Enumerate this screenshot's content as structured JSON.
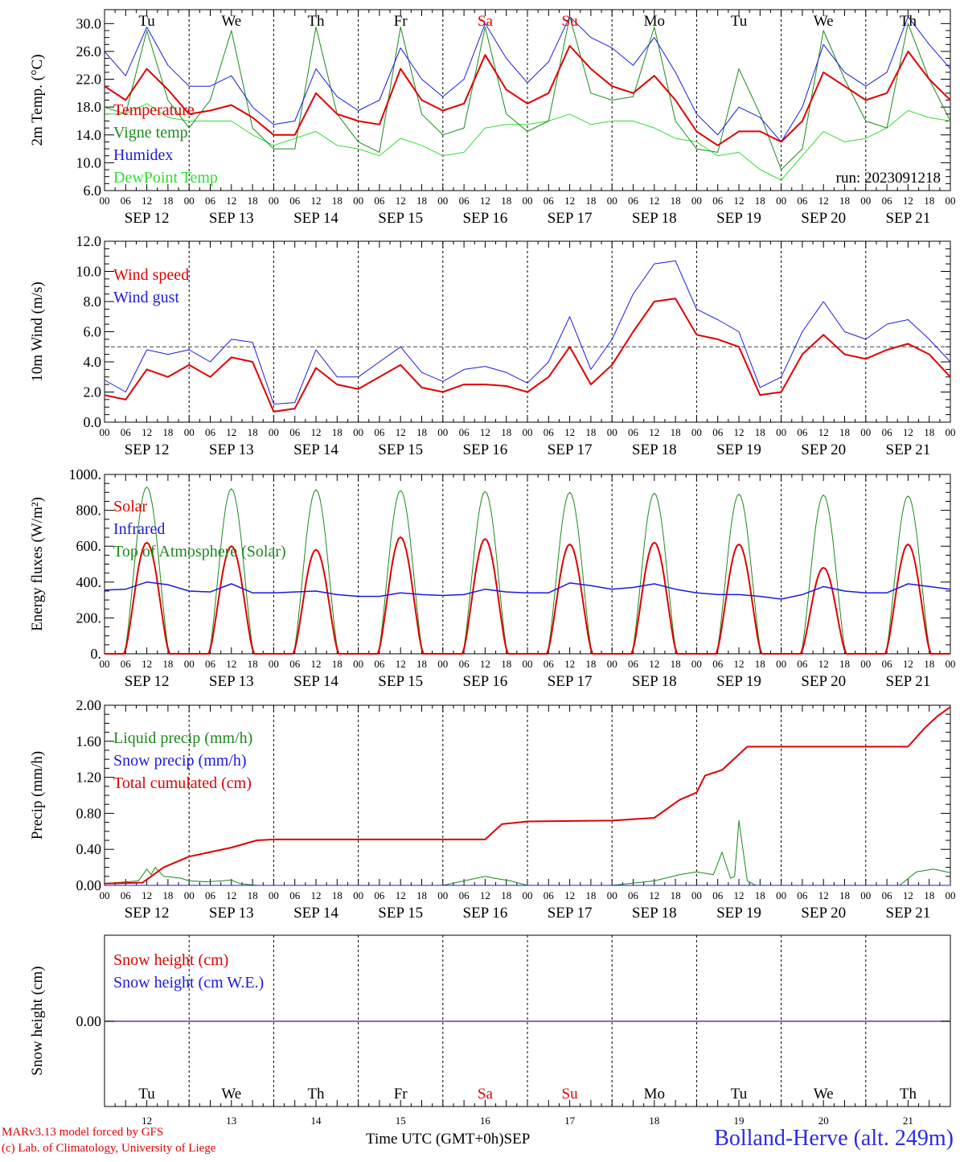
{
  "days": [
    "Tu",
    "We",
    "Th",
    "Fr",
    "Sa",
    "Su",
    "Mo",
    "Tu",
    "We",
    "Th"
  ],
  "day_colors": [
    "#000000",
    "#000000",
    "#000000",
    "#000000",
    "#e00000",
    "#e00000",
    "#000000",
    "#000000",
    "#000000",
    "#000000"
  ],
  "dates": [
    "SEP 12",
    "SEP 13",
    "SEP 14",
    "SEP 15",
    "SEP 16",
    "SEP 17",
    "SEP 18",
    "SEP 19",
    "SEP 20",
    "SEP 21"
  ],
  "day_numbers": [
    "12",
    "13",
    "14",
    "15",
    "16",
    "17",
    "18",
    "19",
    "20",
    "21"
  ],
  "hour_ticks": [
    "00",
    "06",
    "12",
    "18"
  ],
  "run_label": "run: 2023091218",
  "footer": {
    "model": "MARv3.13 model forced by GFS",
    "lab": "(c) Lab. of Climatology, University of Liege",
    "time_label": "Time UTC (GMT+0h)",
    "month": "SEP",
    "station": "Bolland-Herve (alt. 249m)"
  },
  "colors": {
    "red": "#e00000",
    "green": "#1a8a1a",
    "blue": "#1a1ae0",
    "lightgreen": "#33dd33",
    "purple": "#7030a0"
  },
  "chart_data": [
    {
      "type": "line",
      "ylabel": "2m Temp. (°C)",
      "ylim": [
        6,
        32
      ],
      "yticks": [
        6.0,
        10.0,
        14.0,
        18.0,
        22.0,
        26.0,
        30.0
      ],
      "ytick_labels": [
        "6.0",
        "10.0",
        "14.0",
        "18.0",
        "22.0",
        "26.0",
        "30.0"
      ],
      "x_unit": "day index (0 = SEP 12 00 UTC)",
      "x": [
        0,
        0.25,
        0.5,
        0.75,
        1,
        1.25,
        1.5,
        1.75,
        2,
        2.25,
        2.5,
        2.75,
        3,
        3.25,
        3.5,
        3.75,
        4,
        4.25,
        4.5,
        4.75,
        5,
        5.25,
        5.5,
        5.75,
        6,
        6.25,
        6.5,
        6.75,
        7,
        7.25,
        7.5,
        7.75,
        8,
        8.25,
        8.5,
        8.75,
        9,
        9.25,
        9.5,
        9.75,
        10
      ],
      "series": [
        {
          "name": "Temperature",
          "color": "red",
          "width": 2,
          "values": [
            21.0,
            19.0,
            23.5,
            20.5,
            17.0,
            17.5,
            18.3,
            16.5,
            14.0,
            14.0,
            20.0,
            17.0,
            16.0,
            15.5,
            23.5,
            19.0,
            17.5,
            18.5,
            25.5,
            20.5,
            18.5,
            20.0,
            26.8,
            23.5,
            21.0,
            20.0,
            22.5,
            19.0,
            14.5,
            12.5,
            14.5,
            14.5,
            13.0,
            16.0,
            23.0,
            21.0,
            19.0,
            20.0,
            26.0,
            22.0,
            19.0
          ]
        },
        {
          "name": "Vigne temp",
          "color": "green",
          "width": 1,
          "values": [
            18.0,
            17.0,
            29.0,
            19.0,
            15.0,
            19.0,
            29.0,
            15.0,
            12.0,
            12.0,
            29.5,
            17.0,
            13.0,
            11.5,
            29.5,
            17.0,
            14.0,
            15.0,
            29.5,
            17.0,
            14.5,
            16.0,
            31.0,
            20.0,
            19.0,
            19.5,
            29.5,
            16.0,
            12.0,
            11.5,
            23.5,
            17.0,
            9.0,
            12.0,
            29.0,
            22.0,
            16.0,
            15.0,
            30.0,
            22.0,
            16.0
          ]
        },
        {
          "name": "Humidex",
          "color": "blue",
          "width": 1,
          "values": [
            26.0,
            22.5,
            29.5,
            24.0,
            21.0,
            21.0,
            22.5,
            18.0,
            15.5,
            16.0,
            23.5,
            19.5,
            17.5,
            19.0,
            26.5,
            22.0,
            19.5,
            22.0,
            30.0,
            25.0,
            21.5,
            24.5,
            31.0,
            28.0,
            26.5,
            24.0,
            28.0,
            23.0,
            17.0,
            14.0,
            18.0,
            16.5,
            13.0,
            18.0,
            27.0,
            23.0,
            21.0,
            23.0,
            31.0,
            27.0,
            23.5
          ]
        },
        {
          "name": "DewPoint Temp",
          "color": "lightgreen",
          "width": 1,
          "values": [
            17.0,
            17.0,
            18.5,
            16.5,
            16.0,
            16.0,
            16.0,
            14.0,
            12.5,
            13.5,
            14.5,
            12.5,
            12.0,
            11.0,
            13.5,
            12.5,
            11.0,
            11.5,
            15.0,
            15.5,
            15.5,
            16.0,
            17.0,
            15.5,
            16.0,
            16.0,
            15.0,
            13.5,
            13.0,
            11.0,
            11.5,
            9.0,
            7.5,
            11.0,
            14.5,
            13.0,
            13.5,
            15.0,
            17.5,
            16.5,
            16.0
          ]
        }
      ]
    },
    {
      "type": "line",
      "ylabel": "10m Wind (m/s)",
      "ylim": [
        0,
        12
      ],
      "yticks": [
        0.0,
        2.0,
        4.0,
        6.0,
        8.0,
        10.0,
        12.0
      ],
      "ytick_labels": [
        "0.0",
        "2.0",
        "4.0",
        "6.0",
        "8.0",
        "10.0",
        "12.0"
      ],
      "reference_line": 5.0,
      "x_unit": "day index (0 = SEP 12 00 UTC)",
      "x": [
        0,
        0.25,
        0.5,
        0.75,
        1,
        1.25,
        1.5,
        1.75,
        2,
        2.25,
        2.5,
        2.75,
        3,
        3.25,
        3.5,
        3.75,
        4,
        4.25,
        4.5,
        4.75,
        5,
        5.25,
        5.5,
        5.75,
        6,
        6.25,
        6.5,
        6.75,
        7,
        7.25,
        7.5,
        7.75,
        8,
        8.25,
        8.5,
        8.75,
        9,
        9.25,
        9.5,
        9.75,
        10
      ],
      "series": [
        {
          "name": "Wind speed",
          "color": "red",
          "width": 2,
          "values": [
            1.8,
            1.5,
            3.5,
            3.0,
            3.8,
            3.0,
            4.3,
            4.0,
            0.7,
            0.9,
            3.6,
            2.5,
            2.2,
            3.0,
            3.8,
            2.3,
            2.0,
            2.5,
            2.5,
            2.4,
            2.0,
            3.0,
            5.0,
            2.5,
            3.8,
            6.0,
            8.0,
            8.2,
            5.8,
            5.5,
            5.0,
            1.8,
            2.0,
            4.5,
            5.8,
            4.5,
            4.2,
            4.8,
            5.2,
            4.5,
            3.0
          ]
        },
        {
          "name": "Wind gust",
          "color": "blue",
          "width": 1,
          "values": [
            2.8,
            2.0,
            4.8,
            4.5,
            4.8,
            4.0,
            5.5,
            5.3,
            1.2,
            1.3,
            4.8,
            3.0,
            3.0,
            4.0,
            5.0,
            3.3,
            2.7,
            3.5,
            3.7,
            3.3,
            2.6,
            4.0,
            7.0,
            3.5,
            5.5,
            8.5,
            10.5,
            10.7,
            7.5,
            6.8,
            6.0,
            2.3,
            3.0,
            6.0,
            8.0,
            6.0,
            5.5,
            6.5,
            6.8,
            5.5,
            4.0
          ]
        }
      ]
    },
    {
      "type": "line",
      "ylabel": "Energy fluxes (W/m²)",
      "ylim": [
        0,
        1000
      ],
      "yticks": [
        0,
        200,
        400,
        600,
        800,
        1000
      ],
      "ytick_labels": [
        "0.",
        "200.",
        "400.",
        "600.",
        "800.",
        "1000."
      ],
      "peak_hour": 12,
      "half_width_hours": 6.5,
      "series": [
        {
          "name": "Solar",
          "color": "red",
          "width": 2,
          "daily_peaks": [
            620,
            600,
            580,
            650,
            640,
            610,
            620,
            610,
            480,
            610
          ]
        },
        {
          "name": "Infrared",
          "color": "blue",
          "width": 1.5,
          "x": [
            0,
            0.25,
            0.5,
            0.75,
            1,
            1.25,
            1.5,
            1.75,
            2,
            2.25,
            2.5,
            2.75,
            3,
            3.25,
            3.5,
            3.75,
            4,
            4.25,
            4.5,
            4.75,
            5,
            5.25,
            5.5,
            5.75,
            6,
            6.25,
            6.5,
            6.75,
            7,
            7.25,
            7.5,
            7.75,
            8,
            8.25,
            8.5,
            8.75,
            9,
            9.25,
            9.5,
            9.75,
            10
          ],
          "values": [
            355,
            360,
            400,
            385,
            350,
            345,
            390,
            340,
            340,
            345,
            350,
            330,
            320,
            320,
            340,
            330,
            325,
            330,
            360,
            345,
            340,
            340,
            395,
            380,
            360,
            370,
            390,
            360,
            340,
            330,
            330,
            320,
            305,
            330,
            375,
            350,
            340,
            340,
            390,
            375,
            360
          ]
        },
        {
          "name": "Top of Atmosphere (Solar)",
          "color": "green",
          "width": 1,
          "daily_peaks": [
            930,
            920,
            915,
            910,
            905,
            900,
            895,
            890,
            885,
            880
          ]
        }
      ]
    },
    {
      "type": "line",
      "ylabel": "Precip (mm/h)",
      "ylim": [
        0,
        2.0
      ],
      "yticks": [
        0.0,
        0.4,
        0.8,
        1.2,
        1.6,
        2.0
      ],
      "ytick_labels": [
        "0.00",
        "0.40",
        "0.80",
        "1.20",
        "1.60",
        "2.00"
      ],
      "series": [
        {
          "name": "Liquid precip (mm/h)",
          "color": "green",
          "width": 1,
          "x": [
            0,
            0.4,
            0.5,
            0.55,
            0.6,
            0.7,
            0.9,
            1.0,
            1.2,
            1.4,
            1.5,
            1.6,
            1.8,
            2.0,
            4.0,
            4.5,
            4.6,
            4.8,
            5.0,
            6.0,
            6.5,
            6.8,
            7.0,
            7.2,
            7.3,
            7.4,
            7.45,
            7.5,
            7.6,
            7.7,
            8.0,
            9.4,
            9.6,
            9.8,
            10.0
          ],
          "values": [
            0.02,
            0.05,
            0.18,
            0.12,
            0.2,
            0.1,
            0.08,
            0.05,
            0.04,
            0.05,
            0.06,
            0.02,
            0.0,
            0.0,
            0.0,
            0.1,
            0.08,
            0.05,
            0.0,
            0.0,
            0.05,
            0.12,
            0.15,
            0.12,
            0.37,
            0.08,
            0.1,
            0.72,
            0.05,
            0.0,
            0.0,
            0.0,
            0.15,
            0.18,
            0.14
          ]
        },
        {
          "name": "Snow precip (mm/h)",
          "color": "blue",
          "width": 1,
          "x": [
            0,
            10
          ],
          "values": [
            0,
            0
          ]
        },
        {
          "name": "Total cumulated (cm)",
          "color": "red",
          "width": 2,
          "x": [
            0,
            0.45,
            0.7,
            1.0,
            1.5,
            1.8,
            2.0,
            3.0,
            4.0,
            4.5,
            4.7,
            5.0,
            6.0,
            6.5,
            6.8,
            7.0,
            7.1,
            7.2,
            7.3,
            7.6,
            8.0,
            9.0,
            9.5,
            9.7,
            9.85,
            10.0
          ],
          "values": [
            0.02,
            0.03,
            0.2,
            0.32,
            0.42,
            0.5,
            0.51,
            0.51,
            0.51,
            0.51,
            0.68,
            0.71,
            0.72,
            0.75,
            0.95,
            1.03,
            1.22,
            1.25,
            1.28,
            1.54,
            1.54,
            1.54,
            1.54,
            1.75,
            1.88,
            1.98
          ]
        }
      ]
    },
    {
      "type": "line",
      "ylabel": "Snow height (cm)",
      "yticks": [
        0.0
      ],
      "ytick_labels": [
        "0.00"
      ],
      "series": [
        {
          "name": "Snow height (cm)",
          "color": "red",
          "values": [
            0,
            0
          ]
        },
        {
          "name": "Snow height (cm W.E.)",
          "color": "blue",
          "values": [
            0,
            0
          ]
        }
      ]
    }
  ]
}
